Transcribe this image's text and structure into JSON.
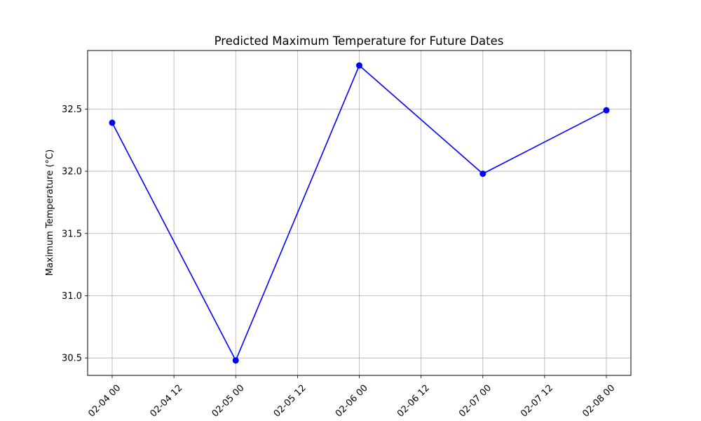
{
  "chart_data": {
    "type": "line",
    "title": "Predicted Maximum Temperature for Future Dates",
    "xlabel": "",
    "ylabel": "Maximum Temperature (°C)",
    "x_tick_labels": [
      "02-04 00",
      "02-04 12",
      "02-05 00",
      "02-05 12",
      "02-06 00",
      "02-06 12",
      "02-07 00",
      "02-07 12",
      "02-08 00"
    ],
    "y_tick_labels": [
      "30.5",
      "31.0",
      "31.5",
      "32.0",
      "32.5"
    ],
    "y_ticks": [
      30.5,
      31.0,
      31.5,
      32.0,
      32.5
    ],
    "ylim": [
      30.36,
      32.97
    ],
    "grid": true,
    "series": [
      {
        "color": "#0000ff",
        "marker": "circle",
        "points": [
          {
            "x": "02-04 00",
            "y": 32.39
          },
          {
            "x": "02-05 00",
            "y": 30.48
          },
          {
            "x": "02-06 00",
            "y": 32.85
          },
          {
            "x": "02-07 00",
            "y": 31.98
          },
          {
            "x": "02-08 00",
            "y": 32.49
          }
        ]
      }
    ]
  }
}
